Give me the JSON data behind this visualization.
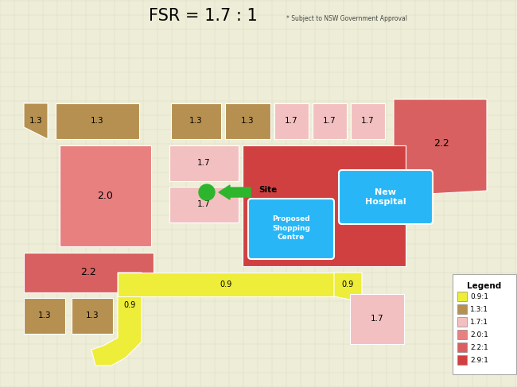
{
  "title": "FSR = 1.7 : 1",
  "subtitle": "* Subject to NSW Government Approval",
  "colors": {
    "0.9": "#eded3a",
    "1.3": "#b59050",
    "1.7": "#f2c0c0",
    "2.0": "#e88080",
    "2.2": "#d96060",
    "2.9": "#d04040"
  },
  "legend_items": [
    {
      "label": "0.9:1",
      "color": "#eded3a"
    },
    {
      "label": "1.3:1",
      "color": "#b59050"
    },
    {
      "label": "1.7:1",
      "color": "#f2c0c0"
    },
    {
      "label": "2.0:1",
      "color": "#e88080"
    },
    {
      "label": "2.2:1",
      "color": "#d96060"
    },
    {
      "label": "2.9:1",
      "color": "#d04040"
    }
  ],
  "hospital_color": "#29b6f6",
  "shopping_color": "#29b6f6",
  "site_color": "#2db52d",
  "arrow_color": "#2db52d",
  "map_bg": "#eeeed8",
  "street_color": "#d8d8c0"
}
